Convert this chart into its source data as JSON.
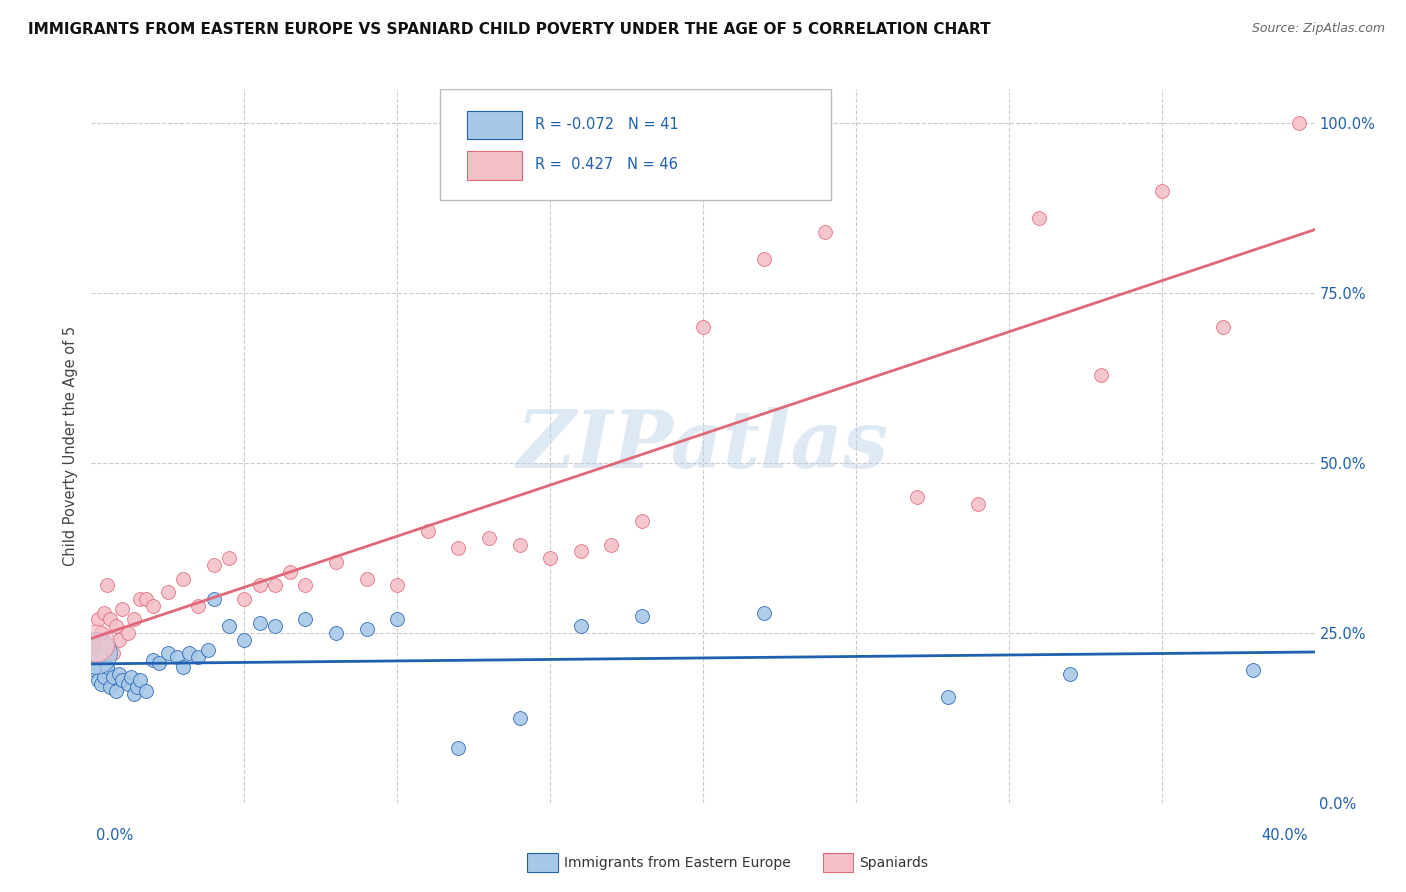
{
  "title": "IMMIGRANTS FROM EASTERN EUROPE VS SPANIARD CHILD POVERTY UNDER THE AGE OF 5 CORRELATION CHART",
  "source": "Source: ZipAtlas.com",
  "ylabel": "Child Poverty Under the Age of 5",
  "R1": -0.072,
  "N1": 41,
  "R2": 0.427,
  "N2": 46,
  "blue_color": "#a8c8e8",
  "pink_color": "#f5c0ca",
  "blue_line_color": "#2060b0",
  "pink_line_color": "#e06878",
  "watermark_text": "ZIPatlas",
  "legend1_label": "Immigrants from Eastern Europe",
  "legend2_label": "Spaniards",
  "blue_scatter_x": [
    0.1,
    0.2,
    0.3,
    0.4,
    0.5,
    0.6,
    0.7,
    0.8,
    0.9,
    1.0,
    1.2,
    1.3,
    1.4,
    1.5,
    1.6,
    1.8,
    2.0,
    2.2,
    2.5,
    2.8,
    3.0,
    3.2,
    3.5,
    3.8,
    4.0,
    4.5,
    5.0,
    5.5,
    6.0,
    7.0,
    8.0,
    9.0,
    10.0,
    12.0,
    14.0,
    16.0,
    18.0,
    22.0,
    28.0,
    32.0,
    38.0
  ],
  "blue_scatter_y": [
    19.5,
    18.0,
    17.5,
    18.5,
    20.0,
    17.0,
    18.5,
    16.5,
    19.0,
    18.0,
    17.5,
    18.5,
    16.0,
    17.0,
    18.0,
    16.5,
    21.0,
    20.5,
    22.0,
    21.5,
    20.0,
    22.0,
    21.5,
    22.5,
    30.0,
    26.0,
    24.0,
    26.5,
    26.0,
    27.0,
    25.0,
    25.5,
    27.0,
    8.0,
    12.5,
    26.0,
    27.5,
    28.0,
    15.5,
    19.0,
    19.5
  ],
  "pink_scatter_x": [
    0.1,
    0.2,
    0.3,
    0.4,
    0.5,
    0.6,
    0.7,
    0.8,
    0.9,
    1.0,
    1.2,
    1.4,
    1.6,
    1.8,
    2.0,
    2.5,
    3.0,
    3.5,
    4.0,
    4.5,
    5.0,
    5.5,
    6.0,
    6.5,
    7.0,
    8.0,
    9.0,
    10.0,
    11.0,
    12.0,
    13.0,
    14.0,
    15.0,
    16.0,
    17.0,
    18.0,
    20.0,
    22.0,
    24.0,
    27.0,
    29.0,
    31.0,
    33.0,
    35.0,
    37.0,
    39.5
  ],
  "pink_scatter_y": [
    23.0,
    27.0,
    25.0,
    28.0,
    32.0,
    27.0,
    22.0,
    26.0,
    24.0,
    28.5,
    25.0,
    27.0,
    30.0,
    30.0,
    29.0,
    31.0,
    33.0,
    29.0,
    35.0,
    36.0,
    30.0,
    32.0,
    32.0,
    34.0,
    32.0,
    35.5,
    33.0,
    32.0,
    40.0,
    37.5,
    39.0,
    38.0,
    36.0,
    37.0,
    38.0,
    41.5,
    70.0,
    80.0,
    84.0,
    45.0,
    44.0,
    86.0,
    63.0,
    90.0,
    70.0,
    100.0
  ],
  "xlim_pct": [
    0.0,
    40.0
  ],
  "ylim_pct": [
    0.0,
    105.0
  ],
  "yticks_pct": [
    0.0,
    25.0,
    50.0,
    75.0,
    100.0
  ],
  "xticks_pct": [
    0.0,
    5.0,
    10.0,
    15.0,
    20.0,
    25.0,
    30.0,
    35.0,
    40.0
  ],
  "figsize": [
    14.06,
    8.92
  ],
  "dpi": 100
}
